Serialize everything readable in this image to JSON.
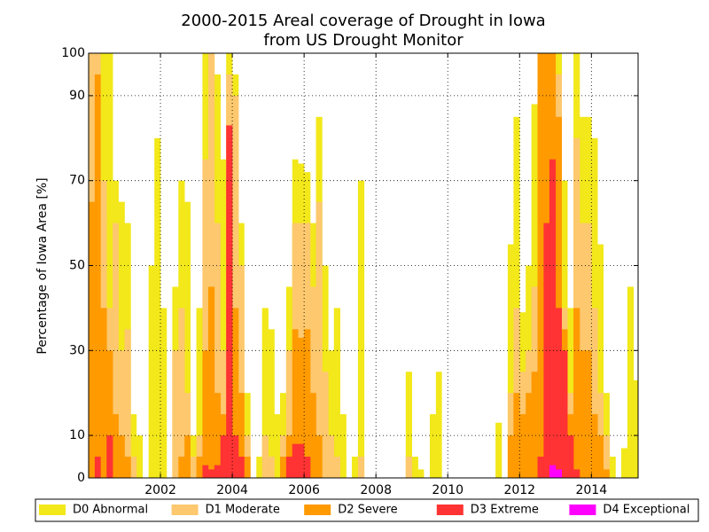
{
  "chart_data": {
    "type": "bar",
    "title": "2000-2015 Areal coverage of Drought in Iowa",
    "subtitle": "from US Drought Monitor",
    "y_label": "Percentage of Iowa Area [%]",
    "x": [
      2000,
      2000.17,
      2000.33,
      2000.5,
      2000.67,
      2000.83,
      2001,
      2001.17,
      2001.33,
      2001.5,
      2001.67,
      2001.83,
      2002,
      2002.17,
      2002.33,
      2002.5,
      2002.67,
      2002.83,
      2003,
      2003.17,
      2003.33,
      2003.5,
      2003.67,
      2003.83,
      2004,
      2004.17,
      2004.33,
      2004.5,
      2004.67,
      2004.83,
      2005,
      2005.17,
      2005.33,
      2005.5,
      2005.67,
      2005.83,
      2006,
      2006.17,
      2006.33,
      2006.5,
      2006.67,
      2006.83,
      2007,
      2007.17,
      2007.33,
      2007.5,
      2007.67,
      2007.83,
      2008,
      2008.17,
      2008.33,
      2008.5,
      2008.67,
      2008.83,
      2009,
      2009.17,
      2009.33,
      2009.5,
      2009.67,
      2009.83,
      2010,
      2010.17,
      2010.33,
      2010.5,
      2010.67,
      2010.83,
      2011,
      2011.17,
      2011.33,
      2011.5,
      2011.67,
      2011.83,
      2012,
      2012.17,
      2012.33,
      2012.5,
      2012.67,
      2012.83,
      2013,
      2013.17,
      2013.33,
      2013.5,
      2013.67,
      2013.83,
      2014,
      2014.17,
      2014.33,
      2014.5,
      2014.67,
      2014.83,
      2015,
      2015.17
    ],
    "series": [
      {
        "name": "D0 Abnormal",
        "color": "#f2e81a",
        "values": [
          100,
          100,
          100,
          100,
          70,
          65,
          60,
          15,
          10,
          0,
          50,
          80,
          40,
          0,
          45,
          70,
          65,
          10,
          40,
          100,
          100,
          95,
          75,
          100,
          95,
          60,
          20,
          0,
          5,
          40,
          35,
          15,
          20,
          45,
          75,
          74,
          72,
          60,
          85,
          50,
          30,
          40,
          15,
          0,
          5,
          70,
          0,
          0,
          0,
          0,
          0,
          0,
          0,
          25,
          5,
          2,
          0,
          15,
          25,
          0,
          0,
          0,
          0,
          0,
          0,
          0,
          0,
          0,
          13,
          0,
          55,
          85,
          39,
          50,
          88,
          100,
          100,
          100,
          100,
          70,
          40,
          100,
          85,
          85,
          80,
          55,
          20,
          5,
          0,
          7,
          45,
          23
        ]
      },
      {
        "name": "D1 Moderate",
        "color": "#fdc86e",
        "values": [
          100,
          100,
          70,
          40,
          60,
          30,
          35,
          5,
          0,
          0,
          0,
          0,
          0,
          0,
          30,
          40,
          20,
          5,
          10,
          75,
          100,
          60,
          30,
          95,
          90,
          50,
          10,
          0,
          0,
          10,
          5,
          0,
          10,
          30,
          60,
          60,
          60,
          45,
          65,
          25,
          10,
          5,
          0,
          0,
          0,
          5,
          0,
          0,
          0,
          0,
          0,
          0,
          0,
          5,
          0,
          0,
          0,
          0,
          0,
          0,
          0,
          0,
          0,
          0,
          0,
          0,
          0,
          0,
          0,
          0,
          20,
          40,
          25,
          30,
          45,
          100,
          100,
          100,
          95,
          40,
          20,
          80,
          60,
          60,
          40,
          20,
          10,
          0,
          0,
          0,
          0,
          0
        ]
      },
      {
        "name": "D2 Severe",
        "color": "#ff9a00",
        "values": [
          65,
          95,
          40,
          30,
          15,
          10,
          5,
          0,
          0,
          0,
          0,
          0,
          0,
          0,
          0,
          5,
          10,
          0,
          5,
          30,
          45,
          20,
          15,
          70,
          40,
          20,
          5,
          0,
          0,
          0,
          0,
          0,
          5,
          10,
          35,
          33,
          35,
          20,
          10,
          0,
          0,
          0,
          0,
          0,
          0,
          0,
          0,
          0,
          0,
          0,
          0,
          0,
          0,
          0,
          0,
          0,
          0,
          0,
          0,
          0,
          0,
          0,
          0,
          0,
          0,
          0,
          0,
          0,
          0,
          0,
          10,
          20,
          15,
          20,
          25,
          100,
          100,
          100,
          85,
          35,
          15,
          40,
          30,
          30,
          15,
          10,
          2,
          0,
          0,
          0,
          0,
          0
        ]
      },
      {
        "name": "D3 Extreme",
        "color": "#ff3333",
        "values": [
          0,
          5,
          0,
          10,
          0,
          0,
          0,
          0,
          0,
          0,
          0,
          0,
          0,
          0,
          0,
          0,
          0,
          0,
          0,
          3,
          2,
          3,
          10,
          83,
          10,
          5,
          0,
          0,
          0,
          0,
          0,
          0,
          0,
          5,
          8,
          8,
          5,
          0,
          0,
          0,
          0,
          0,
          0,
          0,
          0,
          0,
          0,
          0,
          0,
          0,
          0,
          0,
          0,
          0,
          0,
          0,
          0,
          0,
          0,
          0,
          0,
          0,
          0,
          0,
          0,
          0,
          0,
          0,
          0,
          0,
          0,
          0,
          0,
          0,
          0,
          5,
          60,
          75,
          40,
          30,
          10,
          2,
          0,
          0,
          0,
          0,
          0,
          0,
          0,
          0,
          0,
          0
        ]
      },
      {
        "name": "D4 Exceptional",
        "color": "#ff00ff",
        "values": [
          0,
          0,
          0,
          0,
          0,
          0,
          0,
          0,
          0,
          0,
          0,
          0,
          0,
          0,
          0,
          0,
          0,
          0,
          0,
          0,
          0,
          0,
          0,
          0,
          0,
          0,
          0,
          0,
          0,
          0,
          0,
          0,
          0,
          0,
          0,
          0,
          0,
          0,
          0,
          0,
          0,
          0,
          0,
          0,
          0,
          0,
          0,
          0,
          0,
          0,
          0,
          0,
          0,
          0,
          0,
          0,
          0,
          0,
          0,
          0,
          0,
          0,
          0,
          0,
          0,
          0,
          0,
          0,
          0,
          0,
          0,
          0,
          0,
          0,
          0,
          0,
          0,
          3,
          2,
          0,
          0,
          0,
          0,
          0,
          0,
          0,
          0,
          0,
          0,
          0,
          0,
          0
        ]
      }
    ],
    "xlim": [
      2000,
      2015.3
    ],
    "xticks": [
      2002,
      2004,
      2006,
      2008,
      2010,
      2012,
      2014
    ],
    "ylim": [
      0,
      100
    ],
    "yticks": [
      0,
      10,
      30,
      50,
      70,
      90,
      100
    ],
    "grid": true,
    "legend": "bottom"
  }
}
